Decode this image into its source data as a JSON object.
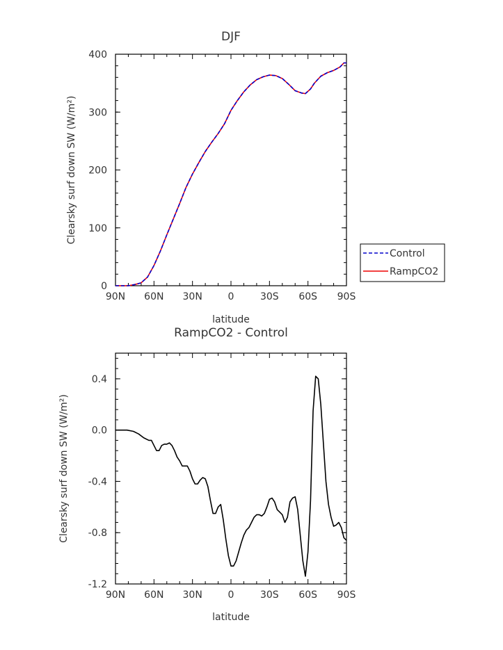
{
  "chart_data": [
    {
      "type": "line",
      "title": "DJF",
      "xlabel": "latitude",
      "ylabel": "Clearsky surf down SW (W/m²)",
      "xlim": [
        -90,
        90
      ],
      "ylim": [
        0,
        400
      ],
      "xticks": [
        {
          "value": -90,
          "label": "90N"
        },
        {
          "value": -60,
          "label": "60N"
        },
        {
          "value": -30,
          "label": "30N"
        },
        {
          "value": 0,
          "label": "0"
        },
        {
          "value": 30,
          "label": "30S"
        },
        {
          "value": 60,
          "label": "60S"
        },
        {
          "value": 90,
          "label": "90S"
        }
      ],
      "yticks": [
        {
          "value": 0,
          "label": "0"
        },
        {
          "value": 100,
          "label": "100"
        },
        {
          "value": 200,
          "label": "200"
        },
        {
          "value": 300,
          "label": "300"
        },
        {
          "value": 400,
          "label": "400"
        }
      ],
      "legend_position": "right",
      "series": [
        {
          "name": "Control",
          "color": "#0000cc",
          "dash": "dashed",
          "x": [
            -90,
            -80,
            -75,
            -70,
            -65,
            -60,
            -55,
            -50,
            -45,
            -40,
            -35,
            -30,
            -25,
            -20,
            -15,
            -10,
            -5,
            0,
            5,
            10,
            15,
            20,
            25,
            30,
            35,
            40,
            45,
            50,
            55,
            58,
            62,
            65,
            70,
            75,
            80,
            85,
            88,
            90
          ],
          "y": [
            0,
            0,
            2,
            5,
            15,
            35,
            60,
            88,
            115,
            142,
            170,
            193,
            213,
            232,
            248,
            263,
            280,
            303,
            320,
            335,
            347,
            356,
            361,
            364,
            363,
            358,
            348,
            337,
            333,
            332,
            340,
            350,
            362,
            368,
            372,
            378,
            385,
            385
          ]
        },
        {
          "name": "RampCO2",
          "color": "#ee0000",
          "dash": "solid",
          "x": [
            -90,
            -80,
            -75,
            -70,
            -65,
            -60,
            -55,
            -50,
            -45,
            -40,
            -35,
            -30,
            -25,
            -20,
            -15,
            -10,
            -5,
            0,
            5,
            10,
            15,
            20,
            25,
            30,
            35,
            40,
            45,
            50,
            55,
            58,
            62,
            65,
            70,
            75,
            80,
            85,
            88,
            90
          ],
          "y": [
            0,
            0,
            2,
            5,
            15,
            35,
            60,
            88,
            115,
            142,
            170,
            193,
            213,
            232,
            248,
            263,
            280,
            303,
            320,
            335,
            347,
            356,
            361,
            364,
            363,
            358,
            348,
            337,
            333,
            332,
            340,
            350,
            362,
            368,
            372,
            378,
            385,
            385
          ]
        }
      ]
    },
    {
      "type": "line",
      "title": "RampCO2 - Control",
      "xlabel": "latitude",
      "ylabel": "Clearsky surf down SW (W/m²)",
      "xlim": [
        -90,
        90
      ],
      "ylim": [
        -1.2,
        0.6
      ],
      "xticks": [
        {
          "value": -90,
          "label": "90N"
        },
        {
          "value": -60,
          "label": "60N"
        },
        {
          "value": -30,
          "label": "30N"
        },
        {
          "value": 0,
          "label": "0"
        },
        {
          "value": 30,
          "label": "30S"
        },
        {
          "value": 60,
          "label": "60S"
        },
        {
          "value": 90,
          "label": "90S"
        }
      ],
      "yticks": [
        {
          "value": 0.4,
          "label": "0.4"
        },
        {
          "value": 0.0,
          "label": "0.0"
        },
        {
          "value": -0.4,
          "label": "-0.4"
        },
        {
          "value": -0.8,
          "label": "-0.8"
        },
        {
          "value": -1.2,
          "label": "-1.2"
        }
      ],
      "series": [
        {
          "color": "#000000",
          "dash": "solid",
          "x": [
            -90,
            -81,
            -76,
            -72,
            -68,
            -64,
            -62,
            -60,
            -58,
            -56,
            -54,
            -52,
            -50,
            -48,
            -46,
            -44,
            -42,
            -40,
            -38,
            -36,
            -34,
            -32,
            -30,
            -28,
            -26,
            -24,
            -22,
            -20,
            -18,
            -16,
            -14,
            -12,
            -10,
            -8,
            -6,
            -4,
            -2,
            0,
            2,
            4,
            6,
            8,
            10,
            12,
            14,
            16,
            18,
            20,
            22,
            24,
            26,
            28,
            30,
            32,
            34,
            36,
            38,
            40,
            42,
            44,
            46,
            48,
            50,
            52,
            54,
            56,
            58,
            60,
            62,
            64,
            66,
            68,
            70,
            72,
            74,
            76,
            78,
            80,
            82,
            84,
            86,
            88,
            90
          ],
          "y": [
            0.0,
            0.0,
            -0.01,
            -0.03,
            -0.06,
            -0.08,
            -0.08,
            -0.12,
            -0.16,
            -0.16,
            -0.12,
            -0.11,
            -0.11,
            -0.1,
            -0.12,
            -0.16,
            -0.21,
            -0.24,
            -0.28,
            -0.28,
            -0.28,
            -0.32,
            -0.38,
            -0.42,
            -0.42,
            -0.39,
            -0.37,
            -0.38,
            -0.44,
            -0.55,
            -0.65,
            -0.65,
            -0.6,
            -0.58,
            -0.7,
            -0.85,
            -0.98,
            -1.06,
            -1.06,
            -1.02,
            -0.95,
            -0.88,
            -0.82,
            -0.78,
            -0.76,
            -0.72,
            -0.68,
            -0.66,
            -0.66,
            -0.67,
            -0.65,
            -0.6,
            -0.54,
            -0.53,
            -0.56,
            -0.62,
            -0.64,
            -0.66,
            -0.72,
            -0.68,
            -0.56,
            -0.53,
            -0.52,
            -0.62,
            -0.82,
            -1.02,
            -1.14,
            -0.95,
            -0.55,
            0.15,
            0.42,
            0.4,
            0.2,
            -0.1,
            -0.4,
            -0.58,
            -0.68,
            -0.75,
            -0.74,
            -0.72,
            -0.76,
            -0.84,
            -0.86
          ]
        }
      ]
    }
  ]
}
